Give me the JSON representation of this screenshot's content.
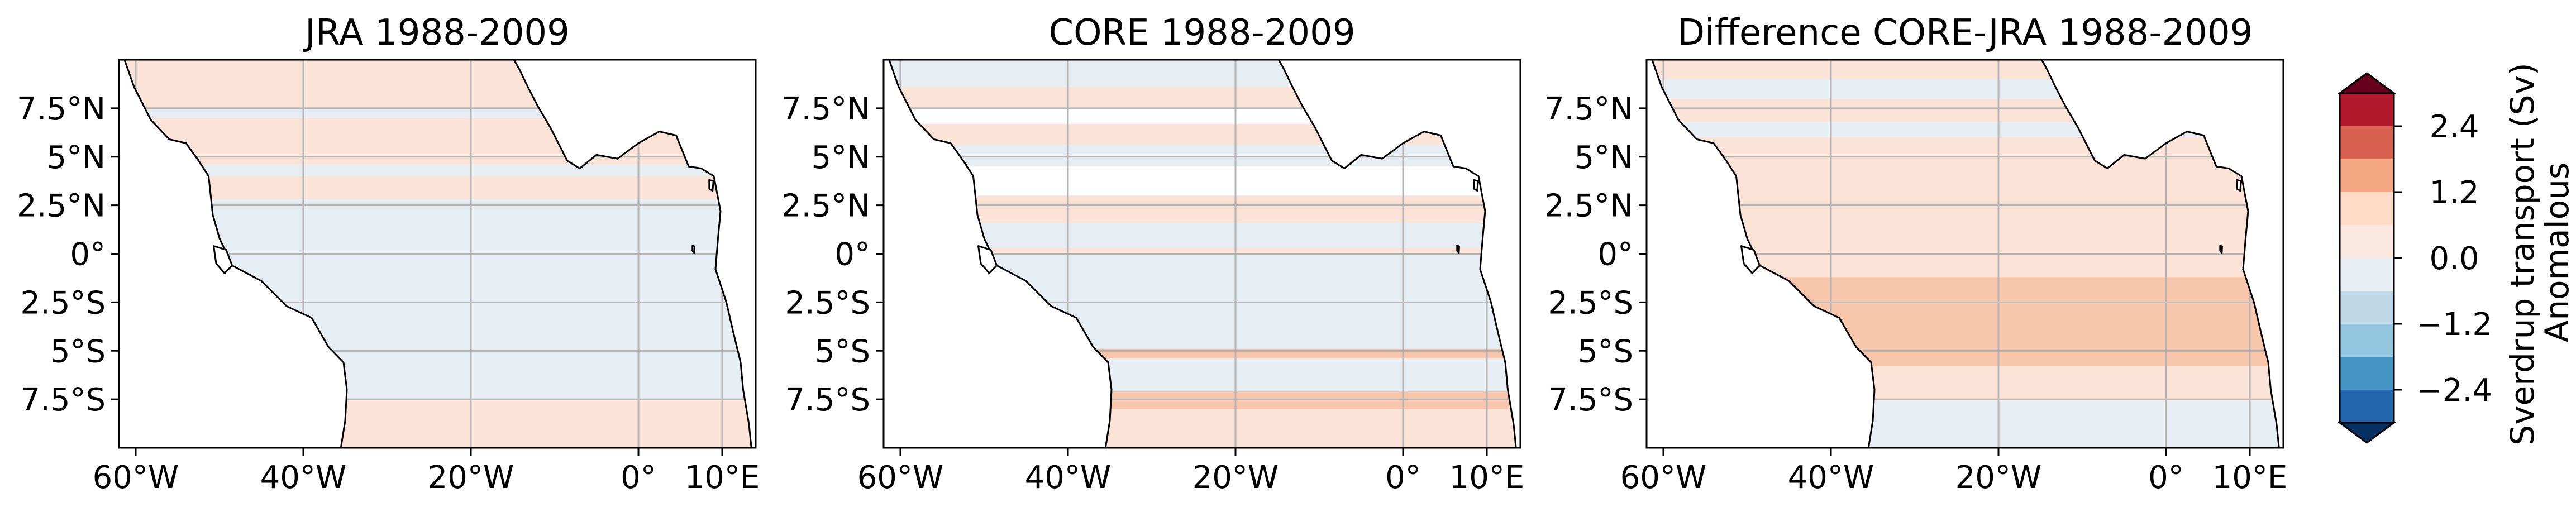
{
  "figure": {
    "panels": [
      {
        "title": "JRA 1988-2009"
      },
      {
        "title": "CORE 1988-2009"
      },
      {
        "title": "Difference CORE-JRA 1988-2009"
      }
    ],
    "colorbar": {
      "label_line1": "Anomalous",
      "label_line2": "Sverdrup transport (Sv)"
    }
  },
  "chart_data": [
    {
      "type": "heatmap",
      "title": "JRA 1988-2009",
      "projection": "map (lon/lat)",
      "x_ticks": [
        "60°W",
        "40°W",
        "20°W",
        "0°",
        "10°E"
      ],
      "y_ticks": [
        "7.5°N",
        "5°N",
        "2.5°N",
        "0°",
        "2.5°S",
        "5°S",
        "7.5°S"
      ],
      "xlim": [
        -62,
        14
      ],
      "ylim": [
        -10,
        10
      ],
      "grid": true,
      "color_classes": [
        {
          "class": "light positive",
          "range": [
            0,
            0.6
          ],
          "color": "#fbe4d7",
          "lat_bands": [
            [
              7.5,
              10
            ],
            [
              4.6,
              7.0
            ],
            [
              2.8,
              4.0
            ],
            [
              -7.5,
              -10
            ]
          ]
        },
        {
          "class": "light negative",
          "range": [
            -0.6,
            0
          ],
          "color": "#e6eef4",
          "lat_bands": [
            [
              -7.5,
              2.8
            ],
            [
              4.0,
              4.6
            ],
            [
              7.0,
              7.5
            ]
          ]
        }
      ]
    },
    {
      "type": "heatmap",
      "title": "CORE 1988-2009",
      "projection": "map (lon/lat)",
      "x_ticks": [
        "60°W",
        "40°W",
        "20°W",
        "0°",
        "10°E"
      ],
      "y_ticks": [
        "7.5°N",
        "5°N",
        "2.5°N",
        "0°",
        "2.5°S",
        "5°S",
        "7.5°S"
      ],
      "xlim": [
        -62,
        14
      ],
      "ylim": [
        -10,
        10
      ],
      "grid": true,
      "color_classes": [
        {
          "class": "light positive",
          "range": [
            0,
            0.6
          ],
          "color": "#fbe4d7",
          "lat_bands": [
            [
              7.5,
              10
            ],
            [
              5.6,
              6.7
            ],
            [
              -10,
              3.0
            ]
          ]
        },
        {
          "class": "light negative",
          "range": [
            -0.6,
            0
          ],
          "color": "#e6eef4",
          "lat_bands": [
            [
              8.6,
              10
            ],
            [
              4.5,
              5.6
            ],
            [
              0.3,
              1.6
            ],
            [
              -7.5,
              0.0
            ]
          ]
        },
        {
          "class": "moderate positive",
          "range": [
            0.6,
            1.2
          ],
          "color": "#f8c6ab",
          "lat_bands": [
            [
              -4.9,
              -5.4
            ],
            [
              -7.1,
              -8.0
            ]
          ]
        }
      ]
    },
    {
      "type": "heatmap",
      "title": "Difference CORE-JRA 1988-2009",
      "projection": "map (lon/lat)",
      "x_ticks": [
        "60°W",
        "40°W",
        "20°W",
        "0°",
        "10°E"
      ],
      "y_ticks": [
        "7.5°N",
        "5°N",
        "2.5°N",
        "0°",
        "2.5°S",
        "5°S",
        "7.5°S"
      ],
      "xlim": [
        -62,
        14
      ],
      "ylim": [
        -10,
        10
      ],
      "grid": true,
      "color_classes": [
        {
          "class": "light positive",
          "range": [
            0,
            0.6
          ],
          "color": "#fbe4d7",
          "lat_bands": [
            [
              -7.6,
              10
            ]
          ]
        },
        {
          "class": "light negative",
          "range": [
            -0.6,
            0
          ],
          "color": "#e6eef4",
          "lat_bands": [
            [
              8.0,
              9.0
            ],
            [
              6.0,
              6.8
            ],
            [
              -7.6,
              -10
            ]
          ]
        },
        {
          "class": "moderate positive",
          "range": [
            0.6,
            1.2
          ],
          "color": "#f8c6ab",
          "lat_bands": [
            [
              -1.2,
              -5.8
            ]
          ]
        }
      ]
    },
    {
      "type": "colorbar",
      "label": "Anomalous Sverdrup transport (Sv)",
      "tick_values": [
        2.4,
        1.2,
        0.0,
        -1.2,
        -2.4
      ],
      "tick_labels": [
        "2.4",
        "1.2",
        "0.0",
        "−1.2",
        "−2.4"
      ],
      "extend": "both",
      "range": [
        -3.0,
        3.0
      ],
      "levels_top_to_bottom": [
        {
          "range": [
            2.4,
            3.0
          ],
          "color": "#b2182b"
        },
        {
          "range": [
            1.8,
            2.4
          ],
          "color": "#d6604d"
        },
        {
          "range": [
            1.2,
            1.8
          ],
          "color": "#f4a582"
        },
        {
          "range": [
            0.6,
            1.2
          ],
          "color": "#fddbc7"
        },
        {
          "range": [
            0.0,
            0.6
          ],
          "color": "#fbe9e0"
        },
        {
          "range": [
            -0.6,
            0.0
          ],
          "color": "#e8eef3"
        },
        {
          "range": [
            -1.2,
            -0.6
          ],
          "color": "#c0d8e8"
        },
        {
          "range": [
            -1.8,
            -1.2
          ],
          "color": "#92c5de"
        },
        {
          "range": [
            -2.4,
            -1.8
          ],
          "color": "#4393c3"
        },
        {
          "range": [
            -3.0,
            -2.4
          ],
          "color": "#2166ac"
        }
      ],
      "extend_top_color": "#67001f",
      "extend_bottom_color": "#053061"
    }
  ]
}
